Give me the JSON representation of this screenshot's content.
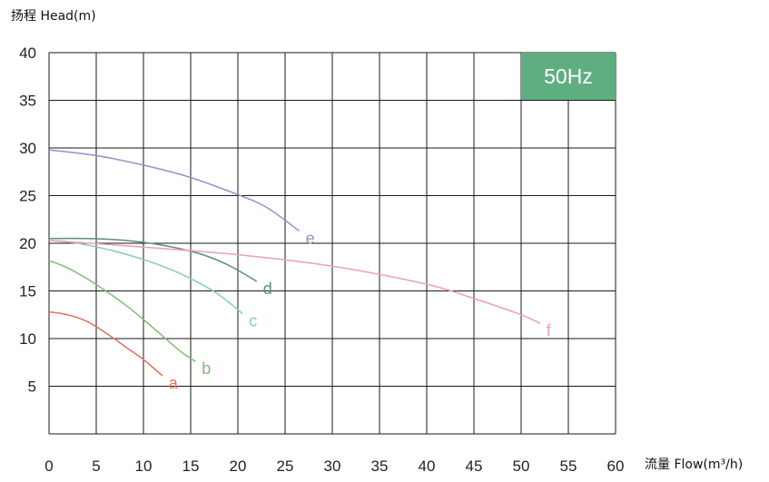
{
  "chart_data": {
    "type": "line",
    "ylabel": "扬程 Head(m)",
    "xlabel": "流量 Flow(m³/h)",
    "badge": "50Hz",
    "badge_color": "#5fae80",
    "xlim": [
      0,
      60
    ],
    "ylim": [
      0,
      40
    ],
    "grid": true,
    "x_ticks": [
      "0",
      "5",
      "10",
      "15",
      "20",
      "25",
      "30",
      "35",
      "40",
      "45",
      "50",
      "55",
      "60"
    ],
    "y_ticks": [
      "5",
      "10",
      "15",
      "20",
      "25",
      "30",
      "35",
      "40"
    ],
    "series": [
      {
        "name": "a",
        "color": "#e0705a",
        "x": [
          0,
          2,
          4,
          6,
          8,
          10,
          12
        ],
        "y": [
          12.8,
          12.5,
          11.8,
          10.6,
          9.2,
          7.8,
          6.1
        ]
      },
      {
        "name": "b",
        "color": "#7cc070",
        "x": [
          0,
          2,
          4,
          6,
          8,
          10,
          12,
          14,
          15.5
        ],
        "y": [
          18.2,
          17.4,
          16.3,
          15.0,
          13.6,
          12.0,
          10.3,
          8.6,
          7.6
        ]
      },
      {
        "name": "c",
        "color": "#86cfa8",
        "x": [
          0,
          3,
          6,
          9,
          12,
          15,
          18,
          20.5
        ],
        "y": [
          20.3,
          20.0,
          19.4,
          18.6,
          17.6,
          16.3,
          14.6,
          12.6
        ]
      },
      {
        "name": "d",
        "color": "#5e8c7f",
        "x": [
          0,
          4,
          8,
          12,
          16,
          19,
          22
        ],
        "y": [
          20.5,
          20.5,
          20.3,
          19.8,
          18.9,
          17.7,
          16.0
        ]
      },
      {
        "name": "e",
        "color": "#8c94c8",
        "x": [
          0,
          5,
          10,
          15,
          20,
          23,
          26.5
        ],
        "y": [
          29.8,
          29.2,
          28.2,
          26.9,
          25.1,
          23.8,
          21.3
        ]
      },
      {
        "name": "f",
        "color": "#ec9cc4",
        "x": [
          0,
          10,
          20,
          30,
          40,
          45,
          50,
          52
        ],
        "y": [
          20.3,
          19.6,
          18.8,
          17.6,
          15.7,
          14.2,
          12.5,
          11.6
        ]
      }
    ]
  }
}
